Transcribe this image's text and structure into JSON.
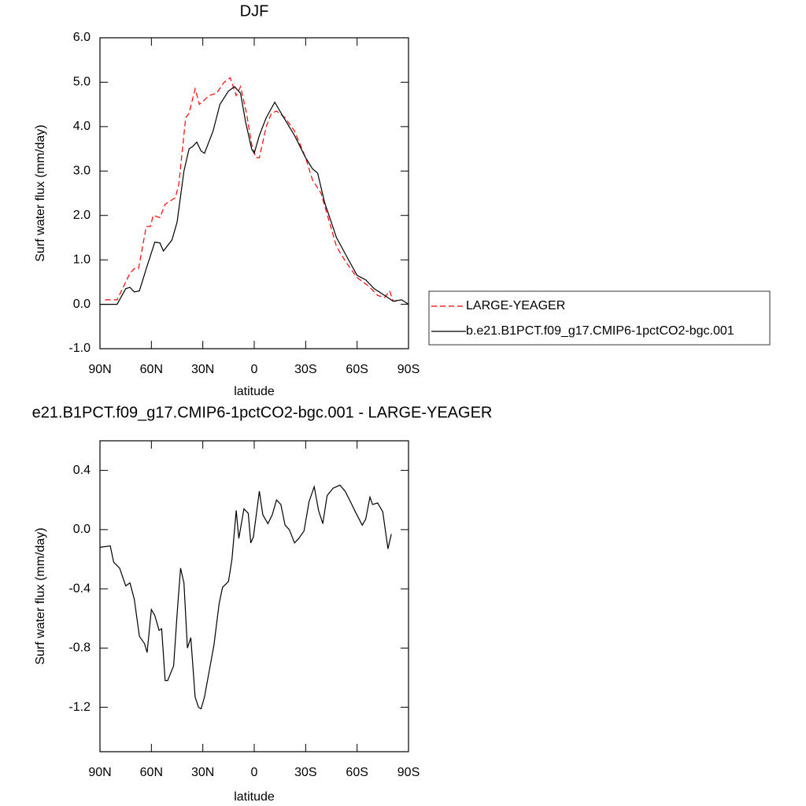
{
  "chart_data": [
    {
      "type": "line",
      "title": "DJF",
      "x_label": "latitude",
      "y_label": "Surf water flux (mm/day)",
      "xlim": [
        90,
        -90
      ],
      "xticks": [
        {
          "value": 90,
          "label": "90N"
        },
        {
          "value": 60,
          "label": "60N"
        },
        {
          "value": 30,
          "label": "30N"
        },
        0,
        {
          "value": -30,
          "label": "30S"
        },
        {
          "value": -60,
          "label": "60S"
        },
        {
          "value": -90,
          "label": "90S"
        }
      ],
      "ylim": [
        -1,
        6
      ],
      "yticks": [
        {
          "value": -1,
          "label": "-1.0"
        },
        {
          "value": 0,
          "label": "0.0"
        },
        {
          "value": 1,
          "label": "1.0"
        },
        {
          "value": 2,
          "label": "2.0"
        },
        {
          "value": 3,
          "label": "3.0"
        },
        {
          "value": 4,
          "label": "4.0"
        },
        {
          "value": 5,
          "label": "5.0"
        },
        {
          "value": 6,
          "label": "6.0"
        }
      ],
      "legend": "right",
      "series": [
        {
          "name": "LARGE-YEAGER",
          "color": "#ff0000",
          "dashed": true,
          "x": [
            87,
            80,
            75,
            72.5,
            70,
            67.5,
            63,
            60.5,
            59,
            55,
            52,
            46,
            44,
            40,
            38,
            34.5,
            32,
            29,
            26.5,
            22,
            17.5,
            14,
            10.5,
            8,
            4.5,
            1.5,
            -1,
            -3,
            -7,
            -10,
            -13,
            -18,
            -23.5,
            -30,
            -34,
            -39,
            -43.5,
            -48,
            -53.5,
            -60,
            -67,
            -72,
            -76,
            -79,
            -81,
            -83
          ],
          "values": [
            0.1,
            0.1,
            0.5,
            0.7,
            0.8,
            0.8,
            1.75,
            1.75,
            2.0,
            1.95,
            2.25,
            2.4,
            2.7,
            4.2,
            4.3,
            4.85,
            4.5,
            4.6,
            4.7,
            4.75,
            5.0,
            5.1,
            4.7,
            4.9,
            4.3,
            3.6,
            3.3,
            3.3,
            4.0,
            4.3,
            4.35,
            4.2,
            3.9,
            3.3,
            2.8,
            2.5,
            1.9,
            1.3,
            0.95,
            0.6,
            0.4,
            0.2,
            0.15,
            0.3,
            0.07,
            0.07
          ]
        },
        {
          "name": "b.e21.B1PCT.f09_g17.CMIP6-1pctCO2-bgc.001",
          "color": "#000000",
          "dashed": false,
          "x": [
            90,
            80,
            75,
            72.5,
            70,
            67,
            63,
            58,
            55,
            53,
            48,
            45,
            41,
            38,
            36,
            33.5,
            31,
            29,
            24,
            20,
            15,
            11.5,
            8,
            5,
            1.5,
            0,
            -3,
            -7,
            -12,
            -16.5,
            -23.5,
            -30,
            -34,
            -37,
            -41,
            -48,
            -55,
            -60,
            -65,
            -70,
            -76,
            -81,
            -86,
            -90
          ],
          "values": [
            0.0,
            0.0,
            0.35,
            0.38,
            0.28,
            0.3,
            0.8,
            1.4,
            1.38,
            1.2,
            1.45,
            1.85,
            3.0,
            3.5,
            3.55,
            3.65,
            3.45,
            3.4,
            3.9,
            4.5,
            4.8,
            4.9,
            4.75,
            4.1,
            3.5,
            3.4,
            3.8,
            4.2,
            4.55,
            4.25,
            3.8,
            3.3,
            3.05,
            2.95,
            2.3,
            1.5,
            1.0,
            0.65,
            0.55,
            0.35,
            0.2,
            0.07,
            0.1,
            0.0
          ]
        }
      ]
    },
    {
      "type": "line",
      "title": "e21.B1PCT.f09_g17.CMIP6-1pctCO2-bgc.001 - LARGE-YEAGER",
      "x_label": "latitude",
      "y_label": "Surf water flux (mm/day)",
      "xlim": [
        90,
        -90
      ],
      "xticks": [
        {
          "value": 90,
          "label": "90N"
        },
        {
          "value": 60,
          "label": "60N"
        },
        {
          "value": 30,
          "label": "30N"
        },
        0,
        {
          "value": -30,
          "label": "30S"
        },
        {
          "value": -60,
          "label": "60S"
        },
        {
          "value": -90,
          "label": "90S"
        }
      ],
      "ylim": [
        -1.5,
        0.6
      ],
      "yticks": [
        -1.2,
        -0.8,
        -0.4,
        {
          "value": 0,
          "label": "0.0"
        },
        0.4
      ],
      "series": [
        {
          "color": "#000000",
          "dashed": false,
          "x": [
            90,
            84,
            82,
            78.5,
            75,
            72.5,
            70,
            67,
            64,
            62.5,
            60,
            58,
            55.5,
            54,
            52,
            50.5,
            47,
            45,
            43,
            41,
            39,
            37,
            34.5,
            32.5,
            31,
            29,
            26.5,
            23.5,
            20.5,
            18.5,
            15,
            13,
            10.5,
            9,
            6,
            3.5,
            2,
            0.5,
            -3,
            -5,
            -8,
            -10.5,
            -13,
            -15.5,
            -18,
            -20.5,
            -23.5,
            -26,
            -29,
            -32,
            -35,
            -37.5,
            -40,
            -42.5,
            -46,
            -50,
            -53,
            -56.5,
            -59,
            -63,
            -65,
            -67.5,
            -69,
            -72,
            -75,
            -78,
            -80
          ],
          "values": [
            -0.12,
            -0.11,
            -0.22,
            -0.26,
            -0.38,
            -0.36,
            -0.47,
            -0.72,
            -0.77,
            -0.83,
            -0.54,
            -0.58,
            -0.68,
            -0.67,
            -1.02,
            -1.02,
            -0.92,
            -0.57,
            -0.26,
            -0.36,
            -0.8,
            -0.73,
            -1.13,
            -1.2,
            -1.21,
            -1.13,
            -0.97,
            -0.78,
            -0.5,
            -0.39,
            -0.35,
            -0.2,
            0.13,
            -0.06,
            0.14,
            0.11,
            -0.09,
            -0.05,
            0.26,
            0.1,
            0.04,
            0.1,
            0.2,
            0.17,
            0.03,
            0.0,
            -0.09,
            -0.06,
            -0.01,
            0.19,
            0.29,
            0.13,
            0.04,
            0.23,
            0.28,
            0.3,
            0.26,
            0.18,
            0.12,
            0.03,
            0.07,
            0.22,
            0.17,
            0.18,
            0.12,
            -0.13,
            -0.03
          ]
        }
      ]
    }
  ]
}
